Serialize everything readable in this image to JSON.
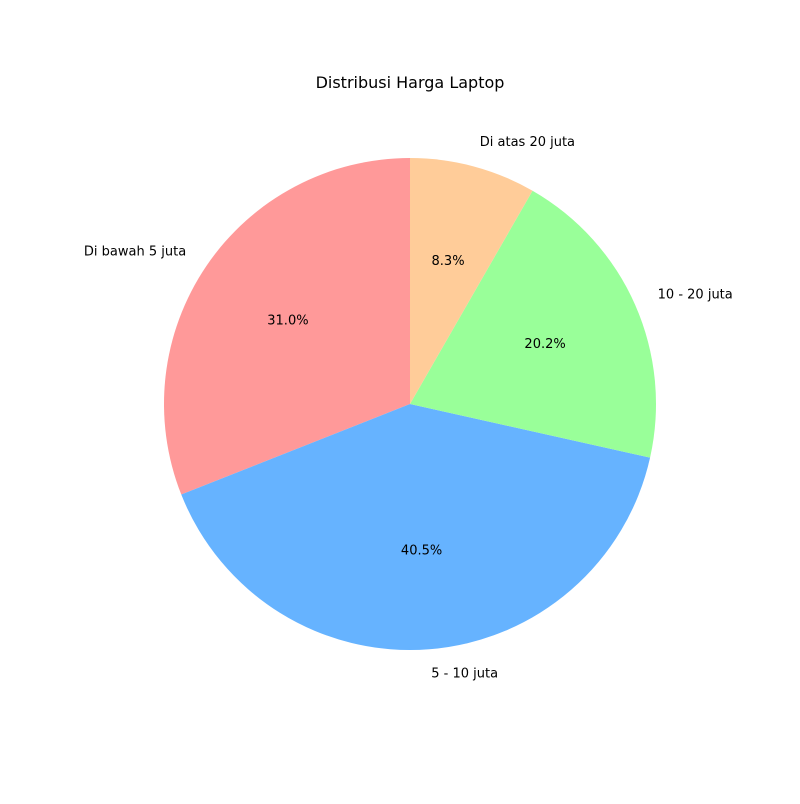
{
  "chart_data": {
    "type": "pie",
    "title": "Distribusi Harga Laptop",
    "categories": [
      "Di bawah 5 juta",
      "5 - 10 juta",
      "10 - 20 juta",
      "Di atas 20 juta"
    ],
    "values": [
      31.0,
      40.5,
      20.2,
      8.3
    ],
    "value_labels": [
      "31.0%",
      "40.5%",
      "20.2%",
      "8.3%"
    ],
    "colors": [
      "#ff9999",
      "#66b3ff",
      "#99ff99",
      "#ffcc99"
    ],
    "start_angle_deg": 90,
    "direction": "counterclockwise",
    "legend": "none"
  }
}
